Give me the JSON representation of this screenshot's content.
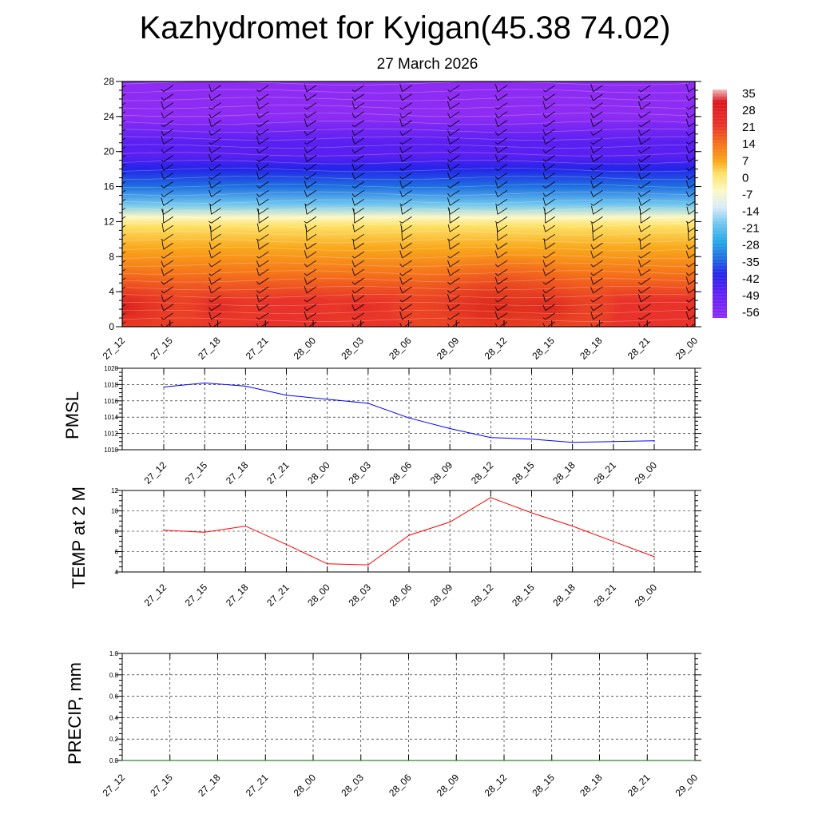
{
  "title": "Kazhydromet for Kyigan(45.38 74.02)",
  "subtitle": "27 March 2026",
  "time_labels": [
    "27_12",
    "27_15",
    "27_18",
    "27_21",
    "28_00",
    "28_03",
    "28_06",
    "28_09",
    "28_12",
    "28_15",
    "28_18",
    "28_21",
    "29_00"
  ],
  "chart_data": [
    {
      "type": "heatmap",
      "name": "cross-section",
      "ylim": [
        0,
        28
      ],
      "yticks": [
        0,
        4,
        8,
        12,
        16,
        20,
        24,
        28
      ],
      "colorbar": {
        "labels": [
          "35",
          "28",
          "21",
          "14",
          "7",
          "0",
          "-7",
          "-14",
          "-21",
          "-28",
          "-35",
          "-42",
          "-49",
          "-56"
        ],
        "stops": [
          {
            "v": 35,
            "color": "#f3c0c0"
          },
          {
            "v": 30,
            "color": "#d9161d"
          },
          {
            "v": 20,
            "color": "#e8322a"
          },
          {
            "v": 12,
            "color": "#f5731a"
          },
          {
            "v": 5,
            "color": "#f9a81b"
          },
          {
            "v": 0,
            "color": "#fde167"
          },
          {
            "v": -7,
            "color": "#fdf8c5"
          },
          {
            "v": -14,
            "color": "#d8ecf8"
          },
          {
            "v": -21,
            "color": "#6ec5ee"
          },
          {
            "v": -28,
            "color": "#27a8e8"
          },
          {
            "v": -35,
            "color": "#1f70e0"
          },
          {
            "v": -42,
            "color": "#2424e8"
          },
          {
            "v": -49,
            "color": "#5a20f2"
          },
          {
            "v": -60,
            "color": "#8e2cf4"
          }
        ]
      },
      "profile": [
        {
          "z": 0,
          "v": 22
        },
        {
          "z": 3,
          "v": 18
        },
        {
          "z": 6,
          "v": 10
        },
        {
          "z": 9,
          "v": 4
        },
        {
          "z": 11.5,
          "v": 0
        },
        {
          "z": 12.5,
          "v": -10
        },
        {
          "z": 14,
          "v": -22
        },
        {
          "z": 16,
          "v": -32
        },
        {
          "z": 18,
          "v": -42
        },
        {
          "z": 19.5,
          "v": -48
        },
        {
          "z": 21,
          "v": -54
        },
        {
          "z": 24,
          "v": -56
        },
        {
          "z": 28,
          "v": -60
        }
      ],
      "surface_temps": [
        24,
        16,
        20,
        14,
        17,
        19,
        16,
        22,
        27,
        22,
        17,
        15,
        14
      ]
    },
    {
      "type": "line",
      "name": "pmsl",
      "ylabel": "PMSL",
      "color": "#0000ff",
      "ylim": [
        1010,
        1020
      ],
      "yticks": [
        1010,
        1012,
        1014,
        1016,
        1018,
        1020
      ],
      "values": [
        1017.7,
        1018.2,
        1017.8,
        1016.7,
        1016.2,
        1015.7,
        1013.9,
        1012.6,
        1011.5,
        1011.3,
        1010.9,
        1011.0,
        1011.1
      ]
    },
    {
      "type": "line",
      "name": "temp2m",
      "ylabel": "TEMP at 2 M",
      "color": "#ff0000",
      "ylim": [
        4,
        12
      ],
      "yticks": [
        4,
        6,
        8,
        10,
        12
      ],
      "values": [
        8.1,
        7.9,
        8.5,
        6.7,
        4.8,
        4.7,
        7.6,
        8.9,
        11.3,
        9.8,
        8.5,
        7.0,
        5.5
      ]
    },
    {
      "type": "line",
      "name": "precip",
      "ylabel": "PRECIP, mm",
      "color": "#006400",
      "ylim": [
        0,
        1
      ],
      "yticks": [
        "0.0",
        "0.2",
        "0.4",
        "0.6",
        "0.8",
        "1.0"
      ],
      "values": [
        0,
        0,
        0,
        0,
        0,
        0,
        0,
        0,
        0,
        0,
        0,
        0,
        0
      ]
    }
  ]
}
